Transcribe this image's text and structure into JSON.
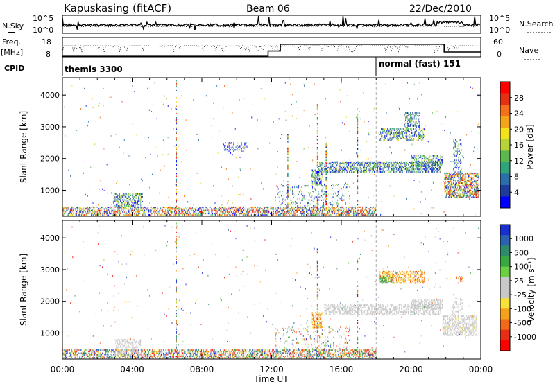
{
  "header": {
    "station": "Kapuskasing (fitACF)",
    "beam": "Beam 06",
    "date": "22/Dec/2010"
  },
  "noise_panel": {
    "left_label": "N.Sky",
    "right_label": "N.Search",
    "left_ticks": [
      "10^5",
      "10^0"
    ],
    "right_ticks": [
      "10^5",
      "10^0"
    ]
  },
  "freq_panel": {
    "left_label": "Freq.",
    "left_unit": "[MHz]",
    "left_ticks": [
      "18",
      "8"
    ],
    "right_label": "Nave",
    "right_ticks": [
      "60",
      "0"
    ]
  },
  "cpid_panel": {
    "label": "CPID",
    "segments": [
      {
        "name": "themis 3300",
        "start_hour": 0
      },
      {
        "name": "normal (fast) 151",
        "start_hour": 18
      }
    ]
  },
  "chart_data": [
    {
      "type": "heatmap",
      "panel": "power",
      "ylabel": "Slant Range [km]",
      "xlabel": "",
      "yticks": [
        "1000",
        "2000",
        "3000",
        "4000"
      ],
      "ylim": [
        180,
        4550
      ],
      "xlim": [
        0,
        24
      ],
      "colorbar_label": "Power [dB]",
      "colorbar_ticks": [
        "4",
        "8",
        "12",
        "16",
        "20",
        "24",
        "28"
      ],
      "colormap": [
        "#0000ff",
        "#1e3c9b",
        "#2b6ea9",
        "#30a57a",
        "#5cb84e",
        "#b8d23a",
        "#f4e21c",
        "#f5a31b",
        "#f5701a",
        "#e53016",
        "#ff0000"
      ],
      "scatter_regions": [
        {
          "t0": 0.0,
          "t1": 18.0,
          "r0": 190,
          "r1": 480,
          "density": 0.55,
          "cmin": 0.0,
          "cmax": 1.0
        },
        {
          "t0": 2.9,
          "t1": 4.6,
          "r0": 480,
          "r1": 900,
          "density": 0.5,
          "cmin": 0.0,
          "cmax": 0.6
        },
        {
          "t0": 12.2,
          "t1": 16.5,
          "r0": 480,
          "r1": 1200,
          "density": 0.12,
          "cmin": 0.0,
          "cmax": 0.5
        },
        {
          "t0": 14.3,
          "t1": 14.9,
          "r0": 1150,
          "r1": 1650,
          "density": 0.55,
          "cmin": 0.0,
          "cmax": 0.55
        },
        {
          "t0": 14.6,
          "t1": 21.7,
          "r0": 1550,
          "r1": 1900,
          "density": 0.5,
          "cmin": 0.0,
          "cmax": 0.55
        },
        {
          "t0": 20.0,
          "t1": 21.8,
          "r0": 1750,
          "r1": 2100,
          "density": 0.45,
          "cmin": 0.0,
          "cmax": 0.55
        },
        {
          "t0": 18.2,
          "t1": 20.8,
          "r0": 2550,
          "r1": 2950,
          "density": 0.45,
          "cmin": 0.0,
          "cmax": 0.6
        },
        {
          "t0": 19.6,
          "t1": 20.5,
          "r0": 2950,
          "r1": 3450,
          "density": 0.4,
          "cmin": 0.0,
          "cmax": 0.5
        },
        {
          "t0": 21.9,
          "t1": 23.9,
          "r0": 750,
          "r1": 1550,
          "density": 0.6,
          "cmin": 0.0,
          "cmax": 1.0
        },
        {
          "t0": 22.4,
          "t1": 22.9,
          "r0": 1500,
          "r1": 2600,
          "density": 0.25,
          "cmin": 0.0,
          "cmax": 0.5
        },
        {
          "t0": 9.2,
          "t1": 10.6,
          "r0": 2200,
          "r1": 2500,
          "density": 0.25,
          "cmin": 0.0,
          "cmax": 0.3
        },
        {
          "t0": 0.0,
          "t1": 24.0,
          "r0": 200,
          "r1": 4400,
          "density": 0.006,
          "cmin": 0.0,
          "cmax": 0.9
        }
      ],
      "streaks": [
        {
          "t": 6.5,
          "r0": 200,
          "r1": 4500
        },
        {
          "t": 14.6,
          "r0": 200,
          "r1": 3700
        },
        {
          "t": 16.9,
          "r0": 300,
          "r1": 3400
        },
        {
          "t": 15.1,
          "r0": 300,
          "r1": 2500
        },
        {
          "t": 12.9,
          "r0": 300,
          "r1": 2800
        }
      ],
      "dashed_time": 18.0
    },
    {
      "type": "heatmap",
      "panel": "velocity",
      "ylabel": "Slant Range [km]",
      "xlabel": "Time UT",
      "yticks": [
        "1000",
        "2000",
        "3000",
        "4000"
      ],
      "ylim": [
        180,
        4550
      ],
      "xlim": [
        0,
        24
      ],
      "xticks": [
        "00:00",
        "04:00",
        "08:00",
        "12:00",
        "16:00",
        "20:00",
        "00:00"
      ],
      "colorbar_label": "Velocity [m s⁻¹]",
      "colorbar_ticks": [
        "1000",
        "500",
        "100",
        "25",
        "-25",
        "-100",
        "-500",
        "-1000"
      ],
      "colormap": [
        "#1a2fd0",
        "#2a62b0",
        "#2e8a6a",
        "#39a843",
        "#6bd144",
        "#c8c8c8",
        "#c8c8c8",
        "#f7e23a",
        "#f5a21b",
        "#f06a1a",
        "#e62e17",
        "#ff0000"
      ],
      "ground_scatter_color": "#c0c0c0",
      "scatter_regions": [
        {
          "t0": 0.0,
          "t1": 18.0,
          "r0": 190,
          "r1": 480,
          "density": 0.55,
          "cmin": 0.0,
          "cmax": 1.0
        },
        {
          "t0": 3.0,
          "t1": 4.5,
          "r0": 300,
          "r1": 800,
          "density": 0.45,
          "cmin": 0.42,
          "cmax": 0.58
        },
        {
          "t0": 14.3,
          "t1": 14.9,
          "r0": 1150,
          "r1": 1650,
          "density": 0.5,
          "cmin": 0.6,
          "cmax": 0.8
        },
        {
          "t0": 15.0,
          "t1": 21.7,
          "r0": 1550,
          "r1": 1900,
          "density": 0.5,
          "cmin": 0.42,
          "cmax": 0.58
        },
        {
          "t0": 20.0,
          "t1": 21.8,
          "r0": 1750,
          "r1": 2050,
          "density": 0.45,
          "cmin": 0.42,
          "cmax": 0.58
        },
        {
          "t0": 18.2,
          "t1": 20.8,
          "r0": 2550,
          "r1": 2950,
          "density": 0.45,
          "cmin": 0.55,
          "cmax": 0.85
        },
        {
          "t0": 18.2,
          "t1": 19.0,
          "r0": 2550,
          "r1": 2800,
          "density": 0.4,
          "cmin": 0.2,
          "cmax": 0.42
        },
        {
          "t0": 21.8,
          "t1": 23.8,
          "r0": 900,
          "r1": 1550,
          "density": 0.55,
          "cmin": 0.42,
          "cmax": 0.6
        },
        {
          "t0": 22.3,
          "t1": 23.0,
          "r0": 1550,
          "r1": 2100,
          "density": 0.25,
          "cmin": 0.42,
          "cmax": 0.58
        },
        {
          "t0": 22.6,
          "t1": 23.0,
          "r0": 2600,
          "r1": 2800,
          "density": 0.4,
          "cmin": 0.7,
          "cmax": 0.9
        },
        {
          "t0": 12.2,
          "t1": 16.5,
          "r0": 480,
          "r1": 1200,
          "density": 0.1,
          "cmin": 0.0,
          "cmax": 1.0
        },
        {
          "t0": 0.0,
          "t1": 24.0,
          "r0": 200,
          "r1": 4400,
          "density": 0.006,
          "cmin": 0.0,
          "cmax": 1.0
        }
      ],
      "streaks": [
        {
          "t": 6.5,
          "r0": 200,
          "r1": 4500
        },
        {
          "t": 14.6,
          "r0": 200,
          "r1": 3700
        },
        {
          "t": 16.9,
          "r0": 300,
          "r1": 3400
        }
      ],
      "dashed_time": 18.0
    }
  ]
}
